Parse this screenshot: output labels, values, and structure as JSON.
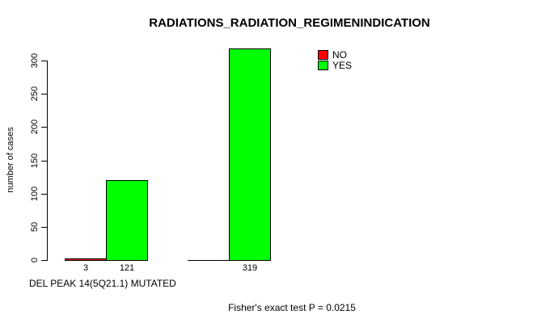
{
  "chart_data": {
    "type": "bar",
    "title": "RADIATIONS_RADIATION_REGIMENINDICATION",
    "xlabel": "DEL PEAK 14(5Q21.1) MUTATED",
    "ylabel": "number of cases",
    "ylim": [
      0,
      300
    ],
    "yticks": [
      0,
      50,
      100,
      150,
      200,
      250,
      300
    ],
    "grid": false,
    "legend_position": "top-right-inside",
    "categories": [
      "",
      ""
    ],
    "series": [
      {
        "name": "NO",
        "color": "#FF0000",
        "values": [
          3,
          0
        ]
      },
      {
        "name": "YES",
        "color": "#00FF00",
        "values": [
          121,
          319
        ]
      }
    ],
    "bar_value_labels": [
      [
        "3",
        "121"
      ],
      [
        null,
        "319"
      ]
    ],
    "footer": "Fisher's exact test P = 0.0215",
    "axis_color": "#000000",
    "background_color": "#FFFFFF"
  }
}
